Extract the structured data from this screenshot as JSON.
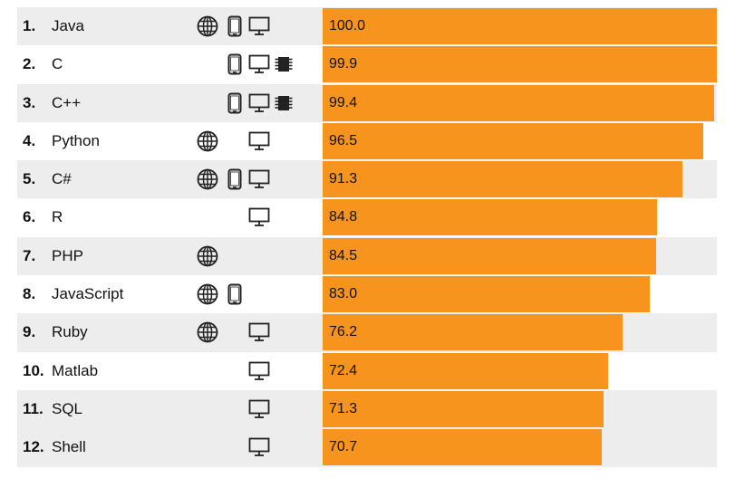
{
  "chart_data": {
    "type": "bar",
    "orientation": "horizontal",
    "xlim": [
      0,
      100
    ],
    "rows": [
      {
        "rank": "1.",
        "name": "Java",
        "value": 100.0,
        "label": "100.0",
        "platforms": [
          "web",
          "mobile",
          "desktop"
        ]
      },
      {
        "rank": "2.",
        "name": "C",
        "value": 99.9,
        "label": "99.9",
        "platforms": [
          "mobile",
          "desktop",
          "embedded"
        ]
      },
      {
        "rank": "3.",
        "name": "C++",
        "value": 99.4,
        "label": "99.4",
        "platforms": [
          "mobile",
          "desktop",
          "embedded"
        ]
      },
      {
        "rank": "4.",
        "name": "Python",
        "value": 96.5,
        "label": "96.5",
        "platforms": [
          "web",
          "desktop"
        ]
      },
      {
        "rank": "5.",
        "name": "C#",
        "value": 91.3,
        "label": "91.3",
        "platforms": [
          "web",
          "mobile",
          "desktop"
        ]
      },
      {
        "rank": "6.",
        "name": "R",
        "value": 84.8,
        "label": "84.8",
        "platforms": [
          "desktop"
        ]
      },
      {
        "rank": "7.",
        "name": "PHP",
        "value": 84.5,
        "label": "84.5",
        "platforms": [
          "web"
        ]
      },
      {
        "rank": "8.",
        "name": "JavaScript",
        "value": 83.0,
        "label": "83.0",
        "platforms": [
          "web",
          "mobile"
        ]
      },
      {
        "rank": "9.",
        "name": "Ruby",
        "value": 76.2,
        "label": "76.2",
        "platforms": [
          "web",
          "desktop"
        ]
      },
      {
        "rank": "10.",
        "name": "Matlab",
        "value": 72.4,
        "label": "72.4",
        "platforms": [
          "desktop"
        ]
      },
      {
        "rank": "11.",
        "name": "SQL",
        "value": 71.3,
        "label": "71.3",
        "platforms": [
          "desktop"
        ]
      },
      {
        "rank": "12.",
        "name": "Shell",
        "value": 70.7,
        "label": "70.7",
        "platforms": [
          "desktop"
        ]
      }
    ],
    "colors": {
      "bar": "#f7941d",
      "row_shade": "#ededed"
    },
    "icons": {
      "web": "globe-icon",
      "mobile": "mobile-phone-icon",
      "desktop": "desktop-monitor-icon",
      "embedded": "chip-icon"
    }
  }
}
